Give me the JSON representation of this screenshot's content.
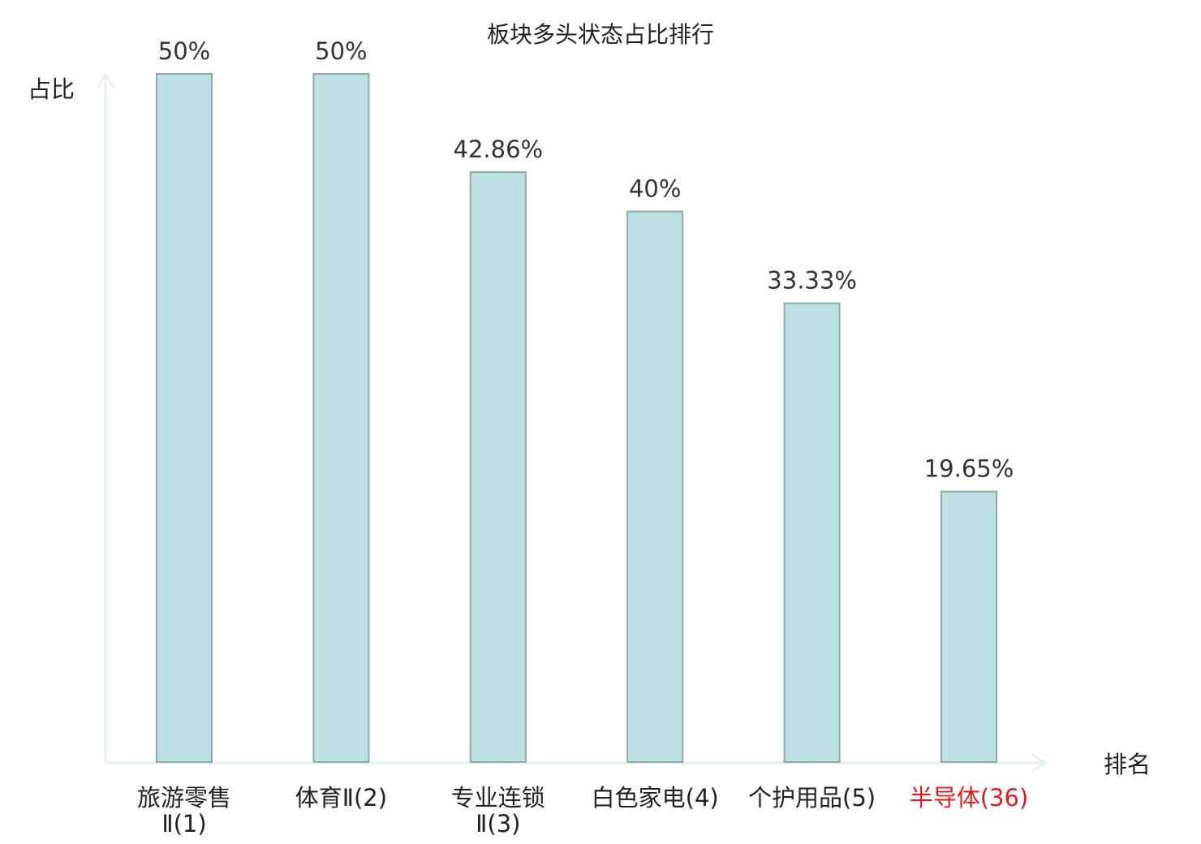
{
  "colors": {
    "bar_fill": "#bde0e2",
    "bar_stroke": "#8fa9ab",
    "axis": "#e0f2ef",
    "text": "#222222",
    "highlight": "#e31d1d"
  },
  "chart_data": {
    "type": "bar",
    "title": "板块多头状态占比排行",
    "ylabel": "占比",
    "xlabel": "排名",
    "ylim": [
      0,
      50
    ],
    "grid": false,
    "legend": "none",
    "categories": [
      {
        "lines": [
          "旅游零售",
          "Ⅱ(1)"
        ],
        "highlight": false
      },
      {
        "lines": [
          "体育Ⅱ(2)"
        ],
        "highlight": false
      },
      {
        "lines": [
          "专业连锁",
          "Ⅱ(3)"
        ],
        "highlight": false
      },
      {
        "lines": [
          "白色家电(4)"
        ],
        "highlight": false
      },
      {
        "lines": [
          "个护用品(5)"
        ],
        "highlight": false
      },
      {
        "lines": [
          "半导体(36)"
        ],
        "highlight": true
      }
    ],
    "values": [
      50,
      50,
      42.86,
      40,
      33.33,
      19.65
    ],
    "value_labels": [
      "50%",
      "50%",
      "42.86%",
      "40%",
      "33.33%",
      "19.65%"
    ]
  }
}
